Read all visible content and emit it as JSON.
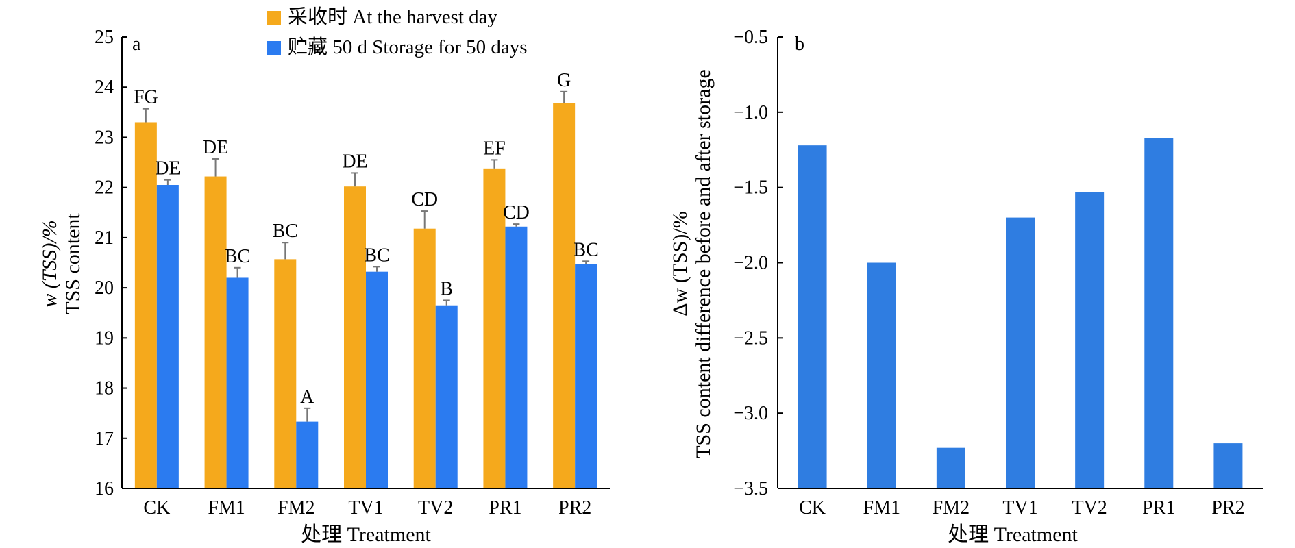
{
  "chart_data": [
    {
      "type": "bar",
      "panel_label": "a",
      "categories": [
        "CK",
        "FM1",
        "FM2",
        "TV1",
        "TV2",
        "PR1",
        "PR2"
      ],
      "series": [
        {
          "name": "采收时 At the harvest day",
          "color": "#f5a91c",
          "values": [
            23.3,
            22.22,
            20.57,
            22.02,
            21.18,
            22.38,
            23.68
          ],
          "errors": [
            0.27,
            0.35,
            0.33,
            0.27,
            0.35,
            0.17,
            0.23
          ],
          "letters": [
            "FG",
            "DE",
            "BC",
            "DE",
            "CD",
            "EF",
            "G"
          ]
        },
        {
          "name": "贮藏 50 d Storage for 50 days",
          "color": "#2b7bf0",
          "values": [
            22.05,
            20.2,
            17.33,
            20.32,
            19.65,
            21.22,
            20.47
          ],
          "errors": [
            0.1,
            0.2,
            0.27,
            0.1,
            0.1,
            0.05,
            0.06
          ],
          "letters": [
            "DE",
            "BC",
            "A",
            "BC",
            "B",
            "CD",
            "BC"
          ]
        }
      ],
      "ylabel_line1": "w (TSS)/%",
      "ylabel_line2": "TSS content",
      "xlabel": "处理 Treatment",
      "ylim": [
        16,
        25
      ],
      "yticks": [
        16,
        17,
        18,
        19,
        20,
        21,
        22,
        23,
        24,
        25
      ],
      "legend_position": "top-center"
    },
    {
      "type": "bar",
      "panel_label": "b",
      "categories": [
        "CK",
        "FM1",
        "FM2",
        "TV1",
        "TV2",
        "PR1",
        "PR2"
      ],
      "series": [
        {
          "color": "#2f7de1",
          "values": [
            -1.22,
            -2.0,
            -3.23,
            -1.7,
            -1.53,
            -1.17,
            -3.2
          ]
        }
      ],
      "ylabel_line1": "Δw (TSS)/%",
      "ylabel_line2": "TSS content difference before and after storage",
      "xlabel": "处理 Treatment",
      "ylim": [
        -3.5,
        -0.5
      ],
      "yticks": [
        "−0.5",
        "−1.0",
        "−1.5",
        "−2.0",
        "−2.5",
        "−3.0",
        "−3.5"
      ],
      "ytick_values": [
        -0.5,
        -1.0,
        -1.5,
        -2.0,
        -2.5,
        -3.0,
        -3.5
      ]
    }
  ]
}
